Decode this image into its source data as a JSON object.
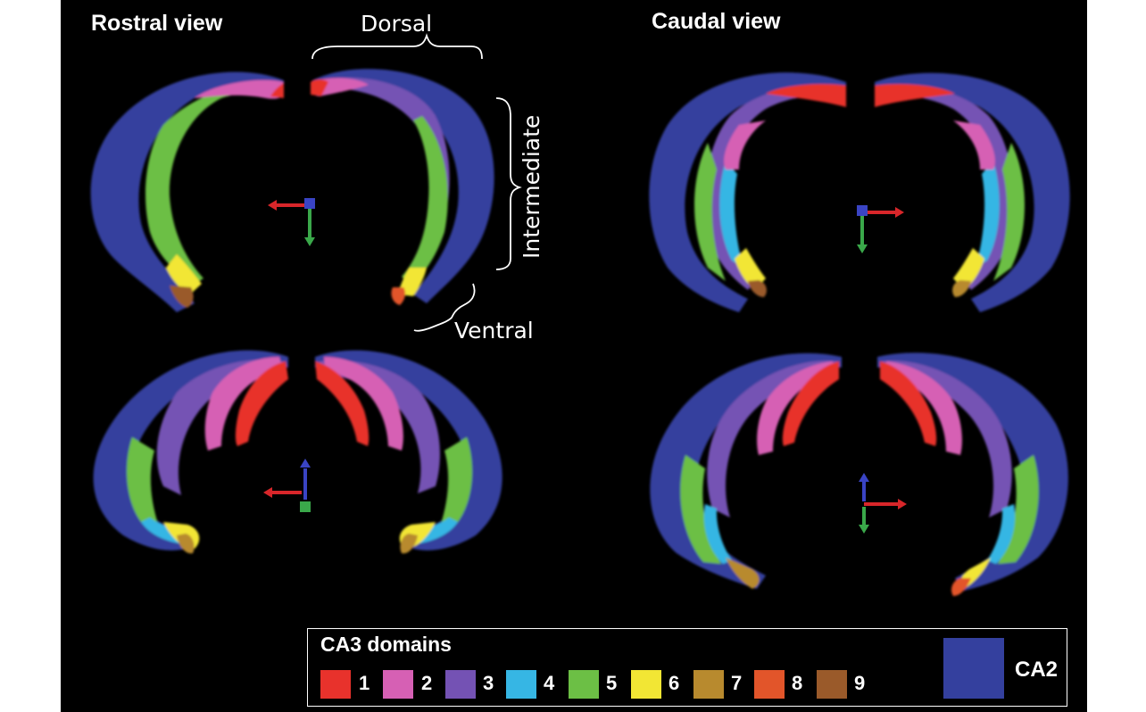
{
  "views": {
    "rostral_title": "Rostral view",
    "caudal_title": "Caudal view"
  },
  "annotations": {
    "dorsal": "Dorsal",
    "intermediate": "Intermediate",
    "ventral": "Ventral"
  },
  "legend": {
    "title": "CA3 domains",
    "domains": [
      {
        "label": "1",
        "color": "#e8322c"
      },
      {
        "label": "2",
        "color": "#d660b4"
      },
      {
        "label": "3",
        "color": "#7452b4"
      },
      {
        "label": "4",
        "color": "#36b6e4"
      },
      {
        "label": "5",
        "color": "#6cbf45"
      },
      {
        "label": "6",
        "color": "#f2e634"
      },
      {
        "label": "7",
        "color": "#b88a2e"
      },
      {
        "label": "8",
        "color": "#e2552a"
      },
      {
        "label": "9",
        "color": "#9a5a2a"
      }
    ],
    "ca2_label": "CA2",
    "ca2_color": "#34409e"
  },
  "colors": {
    "background": "#000000",
    "axis_red": "#d8262a",
    "axis_green": "#3aa84a",
    "axis_blue": "#3a44c4"
  }
}
